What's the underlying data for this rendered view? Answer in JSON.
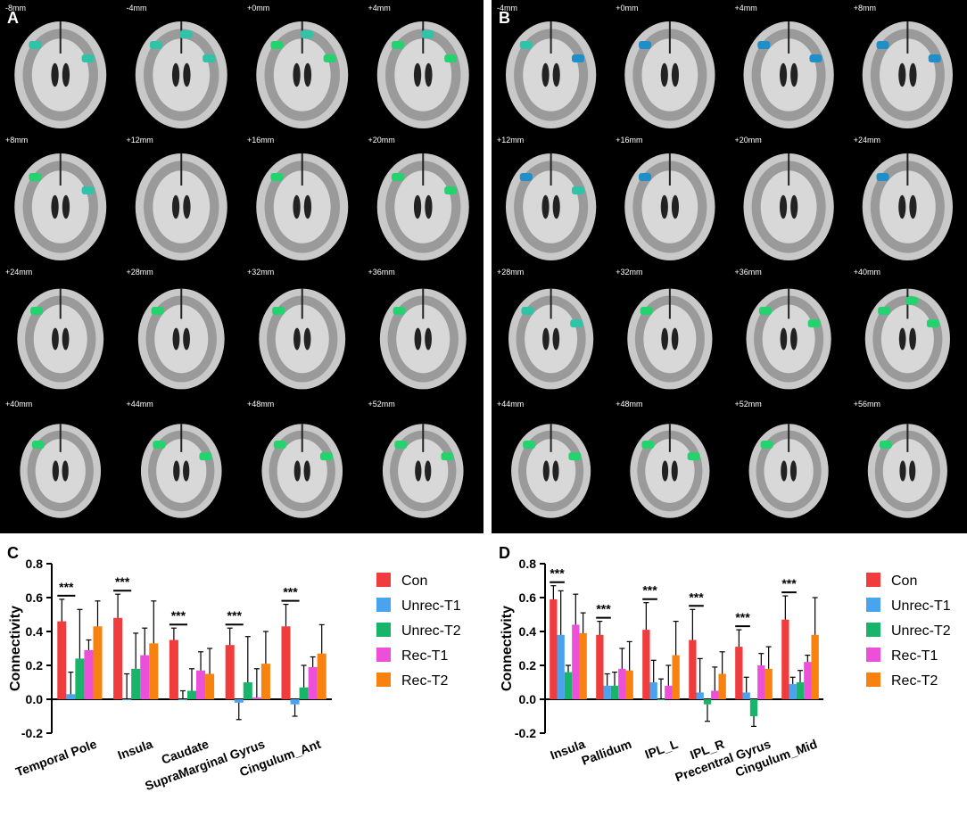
{
  "panels": {
    "A": {
      "letter": "A",
      "slices": [
        {
          "label": "-8mm",
          "spots": [
            "teal",
            "teal"
          ]
        },
        {
          "label": "-4mm",
          "spots": [
            "teal",
            "teal",
            "teal"
          ]
        },
        {
          "label": "+0mm",
          "spots": [
            "green",
            "green",
            "teal"
          ]
        },
        {
          "label": "+4mm",
          "spots": [
            "green",
            "green",
            "teal"
          ]
        },
        {
          "label": "+8mm",
          "spots": [
            "green",
            "teal"
          ]
        },
        {
          "label": "+12mm",
          "spots": []
        },
        {
          "label": "+16mm",
          "spots": [
            "green"
          ]
        },
        {
          "label": "+20mm",
          "spots": [
            "green",
            "green"
          ]
        },
        {
          "label": "+24mm",
          "spots": [
            "green"
          ]
        },
        {
          "label": "+28mm",
          "spots": [
            "green"
          ]
        },
        {
          "label": "+32mm",
          "spots": [
            "green"
          ]
        },
        {
          "label": "+36mm",
          "spots": [
            "green"
          ]
        },
        {
          "label": "+40mm",
          "spots": [
            "green"
          ]
        },
        {
          "label": "+44mm",
          "spots": [
            "green",
            "green"
          ]
        },
        {
          "label": "+48mm",
          "spots": [
            "green",
            "green"
          ]
        },
        {
          "label": "+52mm",
          "spots": [
            "green",
            "green"
          ]
        }
      ]
    },
    "B": {
      "letter": "B",
      "slices": [
        {
          "label": "-4mm",
          "spots": [
            "teal",
            "blue"
          ]
        },
        {
          "label": "+0mm",
          "spots": [
            "blue"
          ]
        },
        {
          "label": "+4mm",
          "spots": [
            "blue",
            "blue"
          ]
        },
        {
          "label": "+8mm",
          "spots": [
            "blue",
            "blue"
          ]
        },
        {
          "label": "+12mm",
          "spots": [
            "blue",
            "teal"
          ]
        },
        {
          "label": "+16mm",
          "spots": [
            "blue"
          ]
        },
        {
          "label": "+20mm",
          "spots": []
        },
        {
          "label": "+24mm",
          "spots": [
            "blue"
          ]
        },
        {
          "label": "+28mm",
          "spots": [
            "teal",
            "teal"
          ]
        },
        {
          "label": "+32mm",
          "spots": [
            "green"
          ]
        },
        {
          "label": "+36mm",
          "spots": [
            "green",
            "green"
          ]
        },
        {
          "label": "+40mm",
          "spots": [
            "green",
            "green",
            "green"
          ]
        },
        {
          "label": "+44mm",
          "spots": [
            "green",
            "green"
          ]
        },
        {
          "label": "+48mm",
          "spots": [
            "green",
            "green"
          ]
        },
        {
          "label": "+52mm",
          "spots": [
            "green"
          ]
        },
        {
          "label": "+56mm",
          "spots": [
            "green"
          ]
        }
      ]
    }
  },
  "colors": {
    "Con": "#f03c3c",
    "Unrec-T1": "#4aa3ee",
    "Unrec-T2": "#18b46a",
    "Rec-T1": "#ec4fd8",
    "Rec-T2": "#f7820f",
    "blob_teal": "#2fc3a8",
    "blob_green": "#22d36e",
    "blob_blue": "#1e8fc8"
  },
  "chart_data": [
    {
      "panel": "C",
      "type": "bar",
      "ylabel": "Connectivity",
      "ylim": [
        -0.2,
        0.8
      ],
      "yticks": [
        "-0.2",
        "0.0",
        "0.2",
        "0.4",
        "0.6",
        "0.8"
      ],
      "categories": [
        "Temporal Pole",
        "Insula",
        "Caudate",
        "SupraMarginal Gyrus",
        "Cingulum_Ant"
      ],
      "legend_position": "right",
      "series": [
        {
          "name": "Con",
          "values": [
            0.46,
            0.48,
            0.35,
            0.32,
            0.43
          ],
          "err": [
            0.13,
            0.14,
            0.07,
            0.1,
            0.13
          ]
        },
        {
          "name": "Unrec-T1",
          "values": [
            0.03,
            0.0,
            0.0,
            -0.02,
            -0.03
          ],
          "err": [
            0.13,
            0.15,
            0.05,
            0.1,
            0.07
          ]
        },
        {
          "name": "Unrec-T2",
          "values": [
            0.24,
            0.18,
            0.05,
            0.1,
            0.07
          ],
          "err": [
            0.29,
            0.21,
            0.13,
            0.27,
            0.13
          ]
        },
        {
          "name": "Rec-T1",
          "values": [
            0.29,
            0.26,
            0.17,
            0.01,
            0.19
          ],
          "err": [
            0.06,
            0.16,
            0.11,
            0.17,
            0.06
          ]
        },
        {
          "name": "Rec-T2",
          "values": [
            0.43,
            0.33,
            0.15,
            0.21,
            0.27
          ],
          "err": [
            0.15,
            0.25,
            0.15,
            0.19,
            0.17
          ]
        }
      ],
      "significance": [
        "***",
        "***",
        "***",
        "***",
        "***"
      ]
    },
    {
      "panel": "D",
      "type": "bar",
      "ylabel": "Connectivity",
      "ylim": [
        -0.2,
        0.8
      ],
      "yticks": [
        "-0.2",
        "0.0",
        "0.2",
        "0.4",
        "0.6",
        "0.8"
      ],
      "categories": [
        "Insula",
        "Pallidum",
        "IPL_L",
        "IPL_R",
        "Precentral Gyrus",
        "Cingulum_Mid"
      ],
      "legend_position": "right",
      "series": [
        {
          "name": "Con",
          "values": [
            0.59,
            0.38,
            0.41,
            0.35,
            0.31,
            0.47
          ],
          "err": [
            0.08,
            0.08,
            0.16,
            0.18,
            0.1,
            0.14
          ]
        },
        {
          "name": "Unrec-T1",
          "values": [
            0.38,
            0.08,
            0.1,
            0.04,
            0.04,
            0.09
          ],
          "err": [
            0.26,
            0.07,
            0.13,
            0.2,
            0.09,
            0.04
          ]
        },
        {
          "name": "Unrec-T2",
          "values": [
            0.16,
            0.08,
            0.0,
            -0.03,
            -0.1,
            0.1
          ],
          "err": [
            0.04,
            0.08,
            0.12,
            0.1,
            0.06,
            0.07
          ]
        },
        {
          "name": "Rec-T1",
          "values": [
            0.44,
            0.18,
            0.08,
            0.05,
            0.2,
            0.22
          ],
          "err": [
            0.18,
            0.12,
            0.12,
            0.14,
            0.07,
            0.04
          ]
        },
        {
          "name": "Rec-T2",
          "values": [
            0.39,
            0.17,
            0.26,
            0.15,
            0.18,
            0.38
          ],
          "err": [
            0.12,
            0.17,
            0.2,
            0.13,
            0.13,
            0.22
          ]
        }
      ],
      "significance": [
        "***",
        "***",
        "***",
        "***",
        "***",
        "***"
      ]
    }
  ]
}
